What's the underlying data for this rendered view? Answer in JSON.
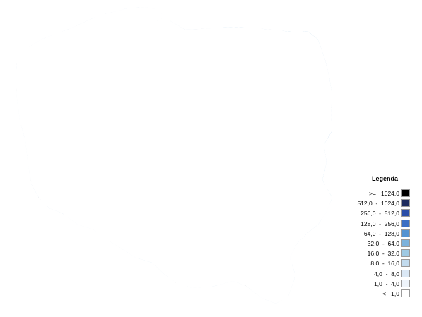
{
  "legend": {
    "title": "Legenda",
    "entries": [
      {
        "lower": ">=",
        "upper": "1024,0",
        "color": "#000000"
      },
      {
        "lower": "512,0",
        "upper": "1024,0",
        "color": "#1e2c5e"
      },
      {
        "lower": "256,0",
        "upper": "512,0",
        "color": "#2b4ea8"
      },
      {
        "lower": "128,0",
        "upper": "256,0",
        "color": "#3c6fc4"
      },
      {
        "lower": "64,0",
        "upper": "128,0",
        "color": "#5493d2"
      },
      {
        "lower": "32,0",
        "upper": "64,0",
        "color": "#7cb2dc"
      },
      {
        "lower": "16,0",
        "upper": "32,0",
        "color": "#9ec9e3"
      },
      {
        "lower": "8,0",
        "upper": "16,0",
        "color": "#c2dbee"
      },
      {
        "lower": "4,0",
        "upper": "8,0",
        "color": "#dbe8f5"
      },
      {
        "lower": "1,0",
        "upper": "4,0",
        "color": "#eef4fb"
      },
      {
        "lower": "<",
        "upper": "1,0",
        "color": "#ffffff"
      }
    ]
  },
  "colors": {
    "country_outline": "#808080",
    "region_border": "#7a7a7a",
    "district_border": "#d4dbe4",
    "capital_city": "#000000"
  }
}
